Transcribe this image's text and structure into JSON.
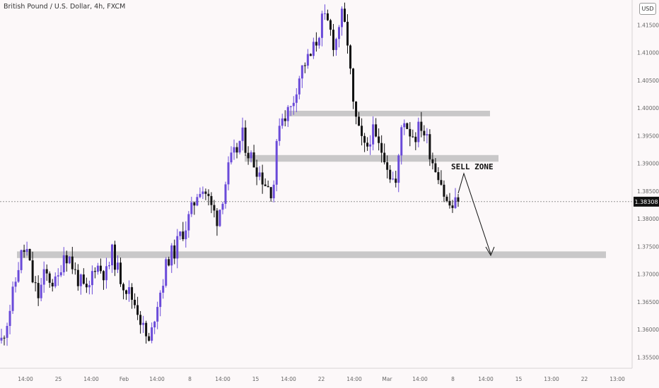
{
  "chart_title": "British Pound / U.S. Dollar, 4h, FXCM",
  "currency_label": "USD",
  "annotation": "SELL ZONE",
  "current_price_label": "1.38308",
  "colors": {
    "background": "#fcf8f9",
    "bull": "#6a4ad9",
    "bear": "#111111",
    "zone": "#c9c8c9",
    "price_tag": "#111111"
  },
  "chart_data": {
    "type": "candlestick",
    "symbol": "GBPUSD",
    "timeframe": "4h",
    "y_range": [
      1.353,
      1.4195
    ],
    "y_ticks": [
      "1.41500",
      "1.41000",
      "1.40500",
      "1.40000",
      "1.39500",
      "1.39000",
      "1.38500",
      "1.38000",
      "1.37500",
      "1.37000",
      "1.36500",
      "1.36000",
      "1.35500"
    ],
    "x_ticks": [
      "14:00",
      "25",
      "14:00",
      "Feb",
      "14:00",
      "8",
      "14:00",
      "15",
      "14:00",
      "22",
      "14:00",
      "Mar",
      "14:00",
      "8",
      "14:00",
      "15",
      "13:00",
      "22",
      "13:00"
    ],
    "current_price": 1.38308,
    "zones": [
      {
        "low": 1.3985,
        "high": 1.3995
      },
      {
        "low": 1.3903,
        "high": 1.3915
      },
      {
        "low": 1.3729,
        "high": 1.3741
      }
    ],
    "path": [
      1.358,
      1.362,
      1.367,
      1.373,
      1.3748,
      1.369,
      1.366,
      1.37,
      1.369,
      1.368,
      1.374,
      1.373,
      1.37,
      1.368,
      1.366,
      1.372,
      1.371,
      1.37,
      1.374,
      1.37,
      1.368,
      1.366,
      1.364,
      1.36,
      1.357,
      1.364,
      1.368,
      1.373,
      1.374,
      1.377,
      1.379,
      1.382,
      1.386,
      1.385,
      1.382,
      1.38,
      1.385,
      1.39,
      1.392,
      1.395,
      1.392,
      1.39,
      1.388,
      1.386,
      1.385,
      1.398,
      1.399,
      1.4,
      1.405,
      1.408,
      1.409,
      1.412,
      1.416,
      1.415,
      1.411,
      1.417,
      1.413,
      1.4,
      1.395,
      1.392,
      1.396,
      1.393,
      1.392,
      1.388,
      1.386,
      1.399,
      1.396,
      1.395,
      1.397,
      1.394,
      1.39,
      1.388,
      1.383,
      1.382,
      1.3831
    ]
  }
}
